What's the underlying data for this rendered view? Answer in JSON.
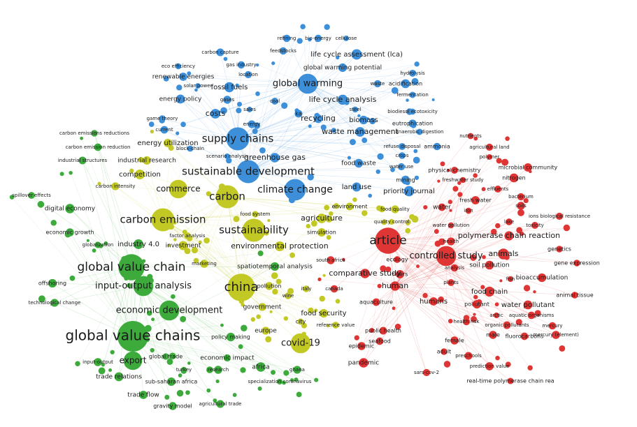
{
  "clusters": [
    {
      "color": "#3d8fd9",
      "nodes": [
        "refining",
        "bio-energy",
        "cellulose",
        "feedstocks",
        "life cycle assessment (lca)",
        "carbon capture",
        "gas industry",
        "global warming potential",
        "eco efficiency",
        "location",
        "hydrolysis",
        "renewable energies",
        "solar power",
        "fossil fuels",
        "global warming",
        "waste",
        "acidification",
        "fermentation",
        "energy policy",
        "gases",
        "coal",
        "life cycle analysis",
        "steel",
        "biodiesol ecotoxicity",
        "game theory",
        "costs",
        "sales",
        "ka",
        "current",
        "energy",
        "recycling",
        "biomass",
        "eutrophication",
        "supply chains",
        "waste management",
        "anaerobic digestion",
        "block-chain",
        "scenario analysis",
        "greenhouse gas",
        "ammonia",
        "climate change",
        "food waste",
        "land use",
        "refuse disposal",
        "crops",
        "water use",
        "mining",
        "priority journal",
        "sustainable development"
      ]
    },
    {
      "color": "#c2c925",
      "nodes": [
        "energy utilization",
        "industrial research",
        "competition",
        "carbon intensity",
        "commerce",
        "carbon",
        "carbon emission",
        "sustainability",
        "food system",
        "factor analysis",
        "investment",
        "environmental protection",
        "marketing",
        "china",
        "pollution",
        "italy",
        "wine",
        "government",
        "food security",
        "city",
        "reference value",
        "europe",
        "covid-19",
        "agriculture",
        "simulation",
        "environment",
        "food quality",
        "quality control"
      ]
    },
    {
      "color": "#3cab3c",
      "nodes": [
        "carbon emissions reductions",
        "carbon emission reduction",
        "industrial structures",
        "spillover effects",
        "digital economy",
        "economic growth",
        "globalization",
        "industry 4.0",
        "global value chain",
        "offshoring",
        "input-output analysis",
        "technological change",
        "economic development",
        "spatiotemporal analysis",
        "global value chains",
        "policy making",
        "export",
        "global trade",
        "economic impact",
        "input-output",
        "trade relations",
        "turkey",
        "research",
        "africa",
        "ghana",
        "sub-saharan africa",
        "specialization coronavirus",
        "trade flow",
        "gravity model",
        "agricultural trade"
      ]
    },
    {
      "color": "#e03535",
      "nodes": [
        "nutrients",
        "agricultural land",
        "polymer",
        "microbial community",
        "physical chemistry",
        "nitrogen",
        "freshwater study",
        "effluents",
        "bacterium",
        "fresh water",
        "soils",
        "water",
        "iron",
        "ions biological resistance",
        "lake",
        "toxicity",
        "polymerase chain reaction",
        "water pollution",
        "article",
        "genetics",
        "health",
        "animals",
        "controlled study",
        "gene expression",
        "soil pollution",
        "analysis",
        "comparative study",
        "ecology",
        "rivers",
        "bioaccumulation",
        "human",
        "humans",
        "food chain",
        "animal tissue",
        "pollutant",
        "water pollutant",
        "health risk",
        "aquatic organisms",
        "organic pollutants",
        "mercury",
        "south africa",
        "canada",
        "aquaculture",
        "public health",
        "seafood",
        "male",
        "fluorocarbons",
        "mercury (element)",
        "epidemic",
        "female",
        "adult",
        "preschools",
        "pandemic",
        "prediction value",
        "sars-cov-2",
        "real-time polymerase chain rea",
        "plants",
        "arctic",
        "fish"
      ]
    }
  ]
}
